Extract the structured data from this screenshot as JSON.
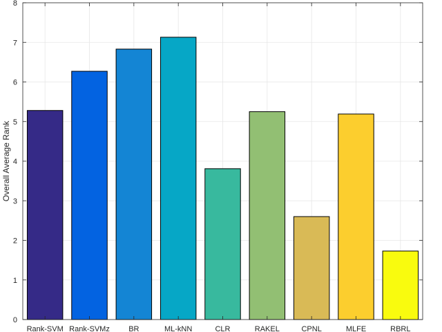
{
  "chart_data": {
    "type": "bar",
    "title": "",
    "xlabel": "",
    "ylabel": "Overall Average Rank",
    "categories": [
      "Rank-SVM",
      "Rank-SVMz",
      "BR",
      "ML-kNN",
      "CLR",
      "RAKEL",
      "CPNL",
      "MLFE",
      "RBRL"
    ],
    "values": [
      5.28,
      6.27,
      6.83,
      7.13,
      3.81,
      5.25,
      2.6,
      5.19,
      1.73
    ],
    "colors": [
      "#352a87",
      "#0363e1",
      "#1485d4",
      "#06a7c6",
      "#38b99e",
      "#92bf73",
      "#d9ba56",
      "#fcce2e",
      "#f9fb0e"
    ],
    "ylim": [
      0,
      8
    ],
    "yticks": [
      0,
      1,
      2,
      3,
      4,
      5,
      6,
      7,
      8
    ],
    "grid": true,
    "legend": "none"
  }
}
